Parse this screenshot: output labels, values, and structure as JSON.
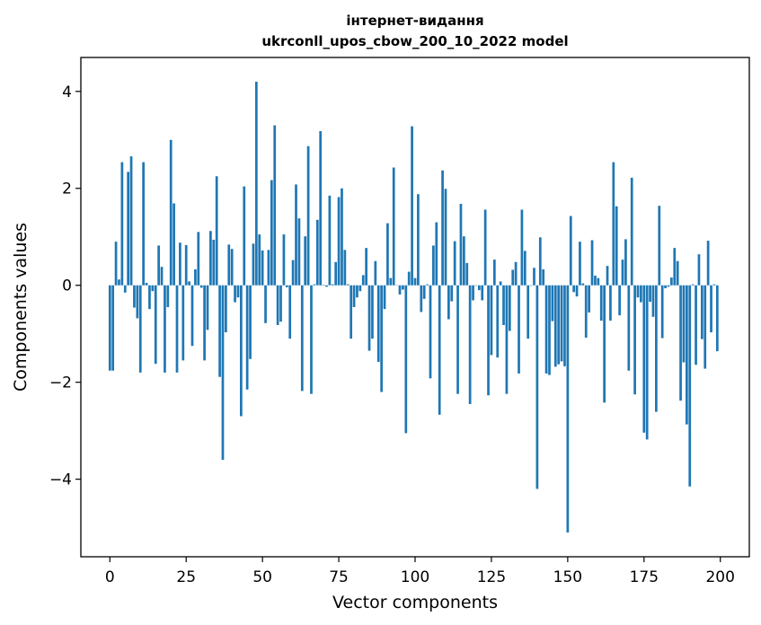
{
  "chart_data": {
    "type": "bar",
    "title_line1": "інтернет-видання",
    "title_line2": "ukrconll_upos_cbow_200_10_2022 model",
    "xlabel": "Vector components",
    "ylabel": "Components values",
    "xlim": [
      -9.5,
      209.5
    ],
    "ylim": [
      -5.6,
      4.7
    ],
    "xticks": [
      0,
      25,
      50,
      75,
      100,
      125,
      150,
      175,
      200
    ],
    "yticks": [
      -4,
      -2,
      0,
      2,
      4
    ],
    "color": "#1f77b4",
    "x": [
      0,
      1,
      2,
      3,
      4,
      5,
      6,
      7,
      8,
      9,
      10,
      11,
      12,
      13,
      14,
      15,
      16,
      17,
      18,
      19,
      20,
      21,
      22,
      23,
      24,
      25,
      26,
      27,
      28,
      29,
      30,
      31,
      32,
      33,
      34,
      35,
      36,
      37,
      38,
      39,
      40,
      41,
      42,
      43,
      44,
      45,
      46,
      47,
      48,
      49,
      50,
      51,
      52,
      53,
      54,
      55,
      56,
      57,
      58,
      59,
      60,
      61,
      62,
      63,
      64,
      65,
      66,
      67,
      68,
      69,
      70,
      71,
      72,
      73,
      74,
      75,
      76,
      77,
      78,
      79,
      80,
      81,
      82,
      83,
      84,
      85,
      86,
      87,
      88,
      89,
      90,
      91,
      92,
      93,
      94,
      95,
      96,
      97,
      98,
      99,
      100,
      101,
      102,
      103,
      104,
      105,
      106,
      107,
      108,
      109,
      110,
      111,
      112,
      113,
      114,
      115,
      116,
      117,
      118,
      119,
      120,
      121,
      122,
      123,
      124,
      125,
      126,
      127,
      128,
      129,
      130,
      131,
      132,
      133,
      134,
      135,
      136,
      137,
      138,
      139,
      140,
      141,
      142,
      143,
      144,
      145,
      146,
      147,
      148,
      149,
      150,
      151,
      152,
      153,
      154,
      155,
      156,
      157,
      158,
      159,
      160,
      161,
      162,
      163,
      164,
      165,
      166,
      167,
      168,
      169,
      170,
      171,
      172,
      173,
      174,
      175,
      176,
      177,
      178,
      179,
      180,
      181,
      182,
      183,
      184,
      185,
      186,
      187,
      188,
      189,
      190,
      191,
      192,
      193,
      194,
      195,
      196,
      197,
      198,
      199
    ],
    "values": [
      -1.76,
      -1.76,
      0.9,
      0.12,
      2.54,
      -0.15,
      2.34,
      2.66,
      -0.46,
      -0.68,
      -1.8,
      2.54,
      0.05,
      -0.49,
      -0.12,
      -1.62,
      0.82,
      0.38,
      -1.8,
      -0.45,
      3.0,
      1.69,
      -1.8,
      0.88,
      -1.55,
      0.83,
      0.08,
      -1.25,
      0.33,
      1.1,
      -0.05,
      -1.55,
      -0.92,
      1.12,
      0.94,
      2.25,
      -1.89,
      -3.6,
      -0.97,
      0.84,
      0.75,
      -0.35,
      -0.25,
      -2.7,
      2.04,
      -2.15,
      -1.52,
      0.86,
      4.2,
      1.05,
      0.72,
      -0.78,
      0.73,
      2.17,
      3.3,
      -0.82,
      -0.75,
      1.05,
      -0.04,
      -1.1,
      0.52,
      2.08,
      1.38,
      -2.18,
      1.01,
      2.87,
      -2.24,
      0.02,
      1.35,
      3.18,
      0.01,
      -0.03,
      1.85,
      0.02,
      0.48,
      1.82,
      2.0,
      0.73,
      0.02,
      -1.1,
      -0.45,
      -0.25,
      -0.12,
      0.21,
      0.77,
      -1.35,
      -1.1,
      0.5,
      -1.58,
      -2.2,
      -0.49,
      1.28,
      0.15,
      2.43,
      0.0,
      -0.19,
      -0.09,
      -3.05,
      0.28,
      3.28,
      0.15,
      1.88,
      -0.55,
      -0.28,
      0.02,
      -1.92,
      0.82,
      1.3,
      -2.67,
      2.37,
      1.99,
      -0.7,
      -0.33,
      0.91,
      -2.24,
      1.68,
      1.01,
      0.46,
      -2.45,
      -0.31,
      -0.01,
      -0.1,
      -0.31,
      1.56,
      -2.27,
      -1.44,
      0.53,
      -1.49,
      0.08,
      -0.82,
      -2.24,
      -0.94,
      0.32,
      0.48,
      -1.82,
      1.56,
      0.71,
      -1.1,
      -0.01,
      0.36,
      -4.2,
      0.99,
      0.33,
      -1.82,
      -1.85,
      -0.74,
      -1.68,
      -1.63,
      -1.57,
      -1.67,
      -5.1,
      1.43,
      -0.14,
      -0.23,
      0.9,
      0.04,
      -1.08,
      -0.56,
      0.93,
      0.2,
      0.15,
      -0.73,
      -2.42,
      0.4,
      -0.73,
      2.54,
      1.63,
      -0.62,
      0.53,
      0.95,
      -1.76,
      2.22,
      -2.25,
      -0.25,
      -0.35,
      -3.04,
      -3.18,
      -0.34,
      -0.65,
      -2.61,
      1.64,
      -1.09,
      -0.06,
      -0.03,
      0.16,
      0.77,
      0.5,
      -2.38,
      -1.59,
      -2.87,
      -4.15,
      0.02,
      -1.64,
      0.64,
      -1.11,
      -1.72,
      0.92,
      -0.97,
      0.02,
      -1.36
    ]
  }
}
